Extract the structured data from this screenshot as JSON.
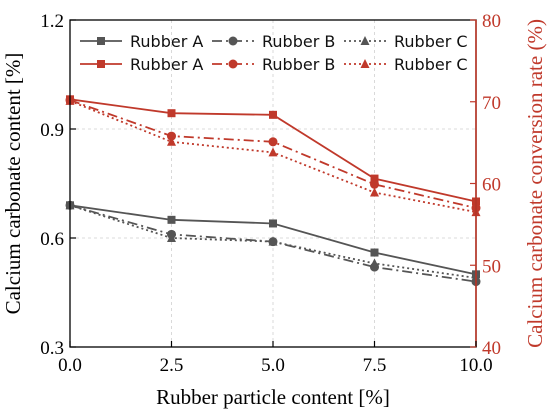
{
  "chart_data": {
    "type": "line",
    "x": [
      0.0,
      2.5,
      5.0,
      7.5,
      10.0
    ],
    "xlabel": "Rubber particle content [%]",
    "xlim": [
      0,
      10
    ],
    "xticks": [
      "0.0",
      "2.5",
      "5.0",
      "7.5",
      "10.0"
    ],
    "y_left": {
      "label": "Calcium carbonate content [%]",
      "lim": [
        0.3,
        1.2
      ],
      "ticks": [
        "0.3",
        "0.6",
        "0.9",
        "1.2"
      ],
      "color": "#000000"
    },
    "y_right": {
      "label": "Calcium carbonate conversion rate (%)",
      "lim": [
        40,
        80
      ],
      "ticks": [
        "40",
        "50",
        "60",
        "70",
        "80"
      ],
      "color": "#c0392b"
    },
    "grid": true,
    "legend_placement": "top",
    "series": [
      {
        "name": "Rubber A",
        "axis": "left",
        "color": "#555555",
        "dash": "solid",
        "marker": "square",
        "values": [
          0.69,
          0.65,
          0.64,
          0.56,
          0.5
        ]
      },
      {
        "name": "Rubber B",
        "axis": "left",
        "color": "#555555",
        "dash": "dashdot",
        "marker": "circle",
        "values": [
          0.69,
          0.61,
          0.59,
          0.52,
          0.48
        ]
      },
      {
        "name": "Rubber C",
        "axis": "left",
        "color": "#555555",
        "dash": "dot",
        "marker": "triangle",
        "values": [
          0.69,
          0.6,
          0.59,
          0.53,
          0.49
        ]
      },
      {
        "name": "Rubber A",
        "axis": "right",
        "color": "#c0392b",
        "dash": "solid",
        "marker": "square",
        "values": [
          70.3,
          68.6,
          68.4,
          60.6,
          57.8
        ]
      },
      {
        "name": "Rubber B",
        "axis": "right",
        "color": "#c0392b",
        "dash": "dashdot",
        "marker": "circle",
        "values": [
          70.2,
          65.8,
          65.1,
          59.9,
          57.0
        ]
      },
      {
        "name": "Rubber C",
        "axis": "right",
        "color": "#c0392b",
        "dash": "dot",
        "marker": "triangle",
        "values": [
          70.1,
          65.1,
          63.8,
          58.9,
          56.5
        ]
      }
    ]
  }
}
